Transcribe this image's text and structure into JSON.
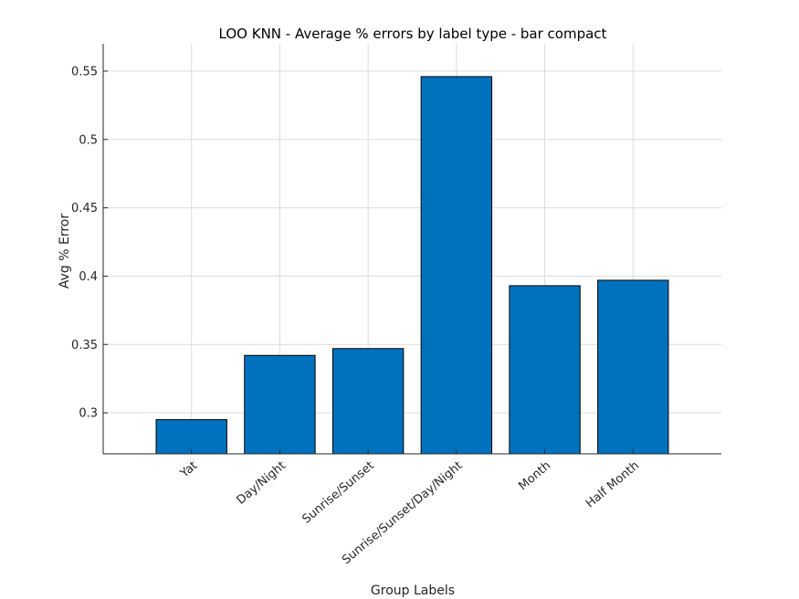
{
  "chart_data": {
    "type": "bar",
    "title": "LOO KNN - Average % errors by label type - bar compact",
    "xlabel": "Group Labels",
    "ylabel": "Avg % Error",
    "categories": [
      "Yat",
      "Day/Night",
      "Sunrise/Sunset",
      "Sunrise/Sunset/Day/Night",
      "Month",
      "Half Month"
    ],
    "values": [
      0.295,
      0.342,
      0.347,
      0.546,
      0.393,
      0.397
    ],
    "ylim": [
      0.27,
      0.57
    ],
    "yticks": [
      0.3,
      0.35,
      0.4,
      0.45,
      0.5,
      0.55
    ],
    "ytick_labels": [
      "0.3",
      "0.35",
      "0.4",
      "0.45",
      "0.5",
      "0.55"
    ],
    "xlim": [
      0,
      7
    ],
    "grid": true,
    "legend": "none",
    "bar_color": "#0072BD"
  }
}
